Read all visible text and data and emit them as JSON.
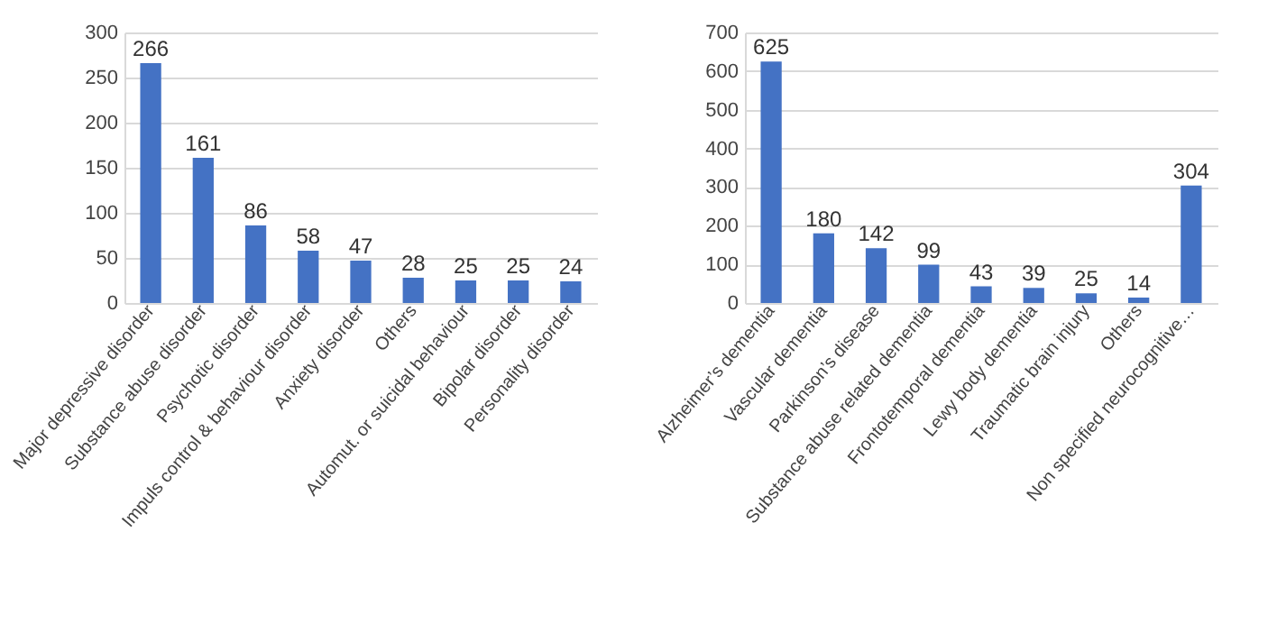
{
  "chart_data": [
    {
      "type": "bar",
      "categories": [
        "Major depressive disorder",
        "Substance abuse disorder",
        "Psychotic disorder",
        "Impuls control & behaviour disorder",
        "Anxiety disorder",
        "Others",
        "Automut. or suicidal behaviour",
        "Bipolar disorder",
        "Personality disorder"
      ],
      "values": [
        266,
        161,
        86,
        58,
        47,
        28,
        25,
        25,
        24
      ],
      "color": "#4472c4",
      "ylim": [
        0,
        300
      ],
      "yticks": [
        0,
        50,
        100,
        150,
        200,
        250,
        300
      ],
      "grid": "y",
      "data_labels": true
    },
    {
      "type": "bar",
      "categories": [
        "Alzheimer’s dementia",
        "Vascular dementia",
        "Parkinson’s disease",
        "Substance abuse related dementia",
        "Frontotemporal dementia",
        "Lewy body dementia",
        "Traumatic brain injury",
        "Others",
        "Non specified neurocognitive…"
      ],
      "values": [
        625,
        180,
        142,
        99,
        43,
        39,
        25,
        14,
        304
      ],
      "color": "#4472c4",
      "ylim": [
        0,
        700
      ],
      "yticks": [
        0,
        100,
        200,
        300,
        400,
        500,
        600,
        700
      ],
      "grid": "y",
      "data_labels": true
    }
  ]
}
